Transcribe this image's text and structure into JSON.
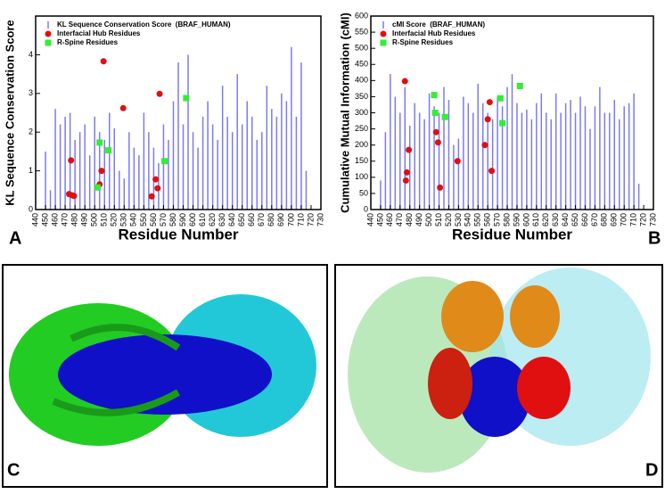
{
  "chart_data": [
    {
      "type": "bar",
      "panel_label": "A",
      "xlabel": "Residue Number",
      "ylabel": "KL Sequence Conservation Score",
      "xlim": [
        440,
        730
      ],
      "xticks": [
        440,
        450,
        460,
        470,
        480,
        490,
        500,
        510,
        520,
        530,
        540,
        550,
        560,
        570,
        580,
        590,
        600,
        610,
        620,
        630,
        640,
        650,
        660,
        670,
        680,
        690,
        700,
        710,
        720,
        730
      ],
      "ylim": [
        0,
        5
      ],
      "yticks": [
        0,
        1,
        2,
        3,
        4
      ],
      "legend": "upper left",
      "series": [
        {
          "name": "KL Sequence Conservation Score  (BRAF_HUMAN)",
          "type": "bar",
          "color": "#7b7bf0",
          "x": [
            450,
            455,
            460,
            465,
            470,
            475,
            480,
            485,
            490,
            495,
            500,
            505,
            510,
            515,
            520,
            525,
            530,
            535,
            540,
            545,
            550,
            555,
            560,
            565,
            570,
            575,
            580,
            585,
            590,
            595,
            600,
            605,
            610,
            615,
            620,
            625,
            630,
            635,
            640,
            645,
            650,
            655,
            660,
            665,
            670,
            675,
            680,
            685,
            690,
            695,
            700,
            705,
            710,
            715
          ],
          "values": [
            1.5,
            0.5,
            2.6,
            2.2,
            2.4,
            2.5,
            1.8,
            2.0,
            2.2,
            1.4,
            2.4,
            2.0,
            1.8,
            2.5,
            2.1,
            1.0,
            0.8,
            2.0,
            1.6,
            1.4,
            2.5,
            2.0,
            1.6,
            1.2,
            2.2,
            1.8,
            2.8,
            3.8,
            2.2,
            4.0,
            2.0,
            1.6,
            2.4,
            2.8,
            2.2,
            1.8,
            3.2,
            2.4,
            2.0,
            3.5,
            2.2,
            2.8,
            2.4,
            1.8,
            2.0,
            3.2,
            2.6,
            2.4,
            3.0,
            2.8,
            4.2,
            2.4,
            3.8,
            1.0
          ]
        },
        {
          "name": "Interfacial Hub Residues",
          "type": "scatter",
          "color": "#e01010",
          "x": [
            476,
            474,
            477,
            479,
            505,
            507,
            509,
            529,
            558,
            562,
            564,
            566
          ],
          "values": [
            1.27,
            0.4,
            0.37,
            0.35,
            0.65,
            1.0,
            3.83,
            2.62,
            0.34,
            0.78,
            0.55,
            2.99
          ]
        },
        {
          "name": "R-Spine Residues",
          "type": "scatter",
          "color": "#33ee33",
          "x": [
            503,
            505,
            514,
            571,
            593
          ],
          "values": [
            0.57,
            1.73,
            1.53,
            1.25,
            2.88
          ]
        }
      ]
    },
    {
      "type": "bar",
      "panel_label": "B",
      "xlabel": "Residue Number",
      "ylabel": "Cumulative Mutual Information (cMI)",
      "xlim": [
        440,
        730
      ],
      "xticks": [
        440,
        450,
        460,
        470,
        480,
        490,
        500,
        510,
        520,
        530,
        540,
        550,
        560,
        570,
        580,
        590,
        600,
        610,
        620,
        630,
        640,
        650,
        660,
        670,
        680,
        690,
        700,
        710,
        720,
        730
      ],
      "ylim": [
        0,
        600
      ],
      "yticks": [
        0,
        50,
        100,
        150,
        200,
        250,
        300,
        350,
        400,
        450,
        500,
        550,
        600
      ],
      "legend": "upper left",
      "series": [
        {
          "name": "cMI Score  (BRAF_HUMAN)",
          "type": "bar",
          "color": "#7b7bf0",
          "x": [
            450,
            455,
            460,
            465,
            470,
            475,
            480,
            485,
            490,
            495,
            500,
            505,
            510,
            515,
            520,
            525,
            530,
            535,
            540,
            545,
            550,
            555,
            560,
            565,
            570,
            575,
            580,
            585,
            590,
            595,
            600,
            605,
            610,
            615,
            620,
            625,
            630,
            635,
            640,
            645,
            650,
            655,
            660,
            665,
            670,
            675,
            680,
            685,
            690,
            695,
            700,
            705,
            710,
            715
          ],
          "values": [
            90,
            240,
            420,
            350,
            300,
            380,
            260,
            330,
            300,
            280,
            360,
            320,
            300,
            380,
            340,
            200,
            220,
            350,
            330,
            300,
            390,
            330,
            300,
            280,
            350,
            320,
            380,
            420,
            330,
            300,
            310,
            280,
            330,
            360,
            300,
            280,
            360,
            300,
            330,
            340,
            300,
            350,
            320,
            250,
            320,
            380,
            300,
            300,
            340,
            280,
            320,
            330,
            360,
            80
          ]
        },
        {
          "name": "Interfacial Hub Residues",
          "type": "scatter",
          "color": "#e01010",
          "x": [
            475,
            476,
            477,
            479,
            507,
            509,
            511,
            529,
            557,
            560,
            562,
            564
          ],
          "values": [
            398,
            90,
            115,
            185,
            240,
            208,
            68,
            150,
            200,
            280,
            333,
            120
          ]
        },
        {
          "name": "R-Spine Residues",
          "type": "scatter",
          "color": "#33ee33",
          "x": [
            505,
            506,
            516,
            573,
            575,
            593
          ],
          "values": [
            355,
            300,
            287,
            345,
            268,
            383
          ]
        }
      ]
    }
  ],
  "panels": [
    {
      "label": "C"
    },
    {
      "label": "D"
    }
  ]
}
